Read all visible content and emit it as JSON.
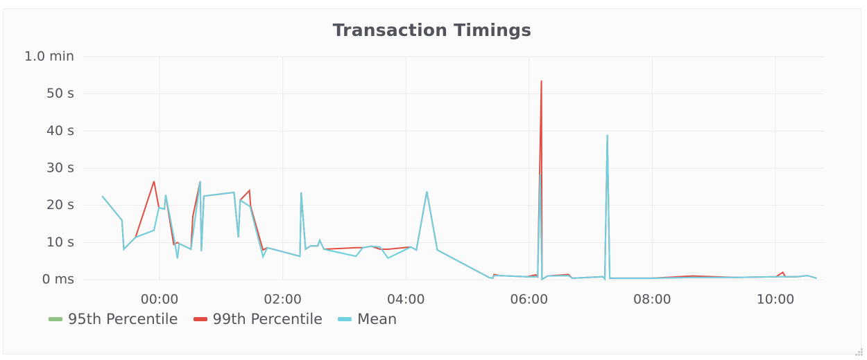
{
  "panel": {
    "title": "Transaction Timings"
  },
  "chart_data": {
    "type": "line",
    "title": "Transaction Timings",
    "xlabel": "",
    "ylabel": "",
    "x_unit": "hours relative to 00:00",
    "y_unit": "seconds",
    "xlim": [
      -1.24,
      10.8
    ],
    "ylim": [
      0,
      60
    ],
    "grid": true,
    "legend_position": "bottom-left",
    "y_ticks": [
      {
        "value": 0,
        "label": "0 ms"
      },
      {
        "value": 10,
        "label": "10 s"
      },
      {
        "value": 20,
        "label": "20 s"
      },
      {
        "value": 30,
        "label": "30 s"
      },
      {
        "value": 40,
        "label": "40 s"
      },
      {
        "value": 50,
        "label": "50 s"
      },
      {
        "value": 60,
        "label": "1.0 min"
      }
    ],
    "x_ticks": [
      {
        "value": 0,
        "label": "00:00"
      },
      {
        "value": 2,
        "label": "02:00"
      },
      {
        "value": 4,
        "label": "04:00"
      },
      {
        "value": 6,
        "label": "06:00"
      },
      {
        "value": 8,
        "label": "08:00"
      },
      {
        "value": 10,
        "label": "10:00"
      }
    ],
    "series": [
      {
        "name": "95th Percentile",
        "color": "#8fc086",
        "x": [
          -0.93,
          -0.61,
          -0.58,
          -0.39,
          -0.09,
          -0.01,
          0.08,
          0.1,
          0.25,
          0.29,
          0.32,
          0.51,
          0.66,
          0.68,
          0.72,
          1.21,
          1.28,
          1.31,
          1.47,
          1.68,
          1.75,
          2.28,
          2.3,
          2.37,
          2.45,
          2.57,
          2.6,
          2.67,
          3.19,
          3.3,
          3.44,
          3.58,
          3.71,
          4.08,
          4.17,
          4.34,
          4.51,
          5.35,
          5.41,
          5.43,
          5.52,
          5.97,
          6.14,
          6.18,
          6.21,
          6.3,
          6.64,
          6.7,
          7.2,
          7.23,
          7.27,
          7.31,
          7.54,
          7.99,
          8.66,
          9.34,
          10.01,
          10.35,
          10.52,
          10.67
        ],
        "values": [
          22.5,
          16,
          8.2,
          11.4,
          13.3,
          19.4,
          19.0,
          22.8,
          9.9,
          5.7,
          9.7,
          8.2,
          26.5,
          7.7,
          22.5,
          23.5,
          11.4,
          21.4,
          19.7,
          6.2,
          8.6,
          6.3,
          23.5,
          8.2,
          9.1,
          9.1,
          10.6,
          8.2,
          6.3,
          8.6,
          9.0,
          8.8,
          5.8,
          8.8,
          8.0,
          23.7,
          8.0,
          0.6,
          0.4,
          1.1,
          1.1,
          0.8,
          0.8,
          28.3,
          0.1,
          1.0,
          1.1,
          0.4,
          0.8,
          0.2,
          39,
          0.4,
          0.4,
          0.4,
          0.6,
          0.6,
          0.8,
          0.8,
          1.1,
          0.4
        ]
      },
      {
        "name": "99th Percentile",
        "color": "#e24d42",
        "x": [
          -0.93,
          -0.61,
          -0.58,
          -0.39,
          -0.09,
          -0.01,
          0.08,
          0.1,
          0.23,
          0.29,
          0.32,
          0.51,
          0.54,
          0.66,
          0.68,
          0.72,
          1.21,
          1.28,
          1.31,
          1.46,
          1.48,
          1.68,
          1.75,
          2.28,
          2.3,
          2.37,
          2.45,
          2.57,
          2.6,
          2.67,
          3.19,
          3.3,
          3.44,
          3.58,
          3.71,
          4.08,
          4.17,
          4.34,
          4.51,
          5.35,
          5.41,
          5.43,
          5.52,
          5.97,
          6.11,
          6.14,
          6.2,
          6.21,
          6.3,
          6.64,
          6.7,
          7.2,
          7.23,
          7.27,
          7.31,
          7.54,
          7.99,
          8.66,
          9.34,
          10.01,
          10.12,
          10.16,
          10.35,
          10.52,
          10.67
        ],
        "values": [
          22.5,
          16,
          8.2,
          11.4,
          26.5,
          19.4,
          19.0,
          22.8,
          9.5,
          10.0,
          9.7,
          8.2,
          17.0,
          26.5,
          7.7,
          22.5,
          23.5,
          11.4,
          21.4,
          24.0,
          19.7,
          8.0,
          8.6,
          6.3,
          23.5,
          8.2,
          9.1,
          9.1,
          10.6,
          8.2,
          8.6,
          8.6,
          9.0,
          8.2,
          8.2,
          8.8,
          8.0,
          23.7,
          8.0,
          0.6,
          0.4,
          1.4,
          1.1,
          0.8,
          1.3,
          0.8,
          53.6,
          0.1,
          1.0,
          1.4,
          0.4,
          0.8,
          0.2,
          39,
          0.4,
          0.4,
          0.4,
          1.0,
          0.6,
          0.8,
          2.0,
          0.8,
          0.8,
          1.1,
          0.4
        ]
      },
      {
        "name": "Mean",
        "color": "#6ed0e0",
        "x": [
          -0.93,
          -0.61,
          -0.58,
          -0.39,
          -0.09,
          -0.01,
          0.08,
          0.1,
          0.25,
          0.29,
          0.32,
          0.51,
          0.66,
          0.68,
          0.72,
          1.21,
          1.28,
          1.31,
          1.47,
          1.68,
          1.75,
          2.28,
          2.3,
          2.37,
          2.45,
          2.57,
          2.6,
          2.67,
          3.19,
          3.3,
          3.44,
          3.58,
          3.71,
          4.08,
          4.17,
          4.34,
          4.51,
          5.35,
          5.41,
          5.43,
          5.52,
          5.97,
          6.14,
          6.18,
          6.21,
          6.3,
          6.64,
          6.7,
          7.2,
          7.23,
          7.27,
          7.31,
          7.54,
          7.99,
          8.66,
          9.34,
          10.01,
          10.35,
          10.52,
          10.67
        ],
        "values": [
          22.5,
          16,
          8.2,
          11.4,
          13.3,
          19.4,
          19.0,
          22.8,
          9.9,
          5.7,
          9.7,
          8.2,
          26.5,
          7.7,
          22.5,
          23.5,
          11.4,
          21.4,
          19.7,
          6.2,
          8.6,
          6.3,
          23.5,
          8.2,
          9.1,
          9.1,
          10.6,
          8.2,
          6.3,
          8.6,
          9.0,
          8.8,
          5.8,
          8.8,
          8.0,
          23.7,
          8.0,
          0.6,
          0.4,
          1.1,
          1.1,
          0.8,
          0.8,
          28.3,
          0.1,
          1.0,
          1.1,
          0.4,
          0.8,
          0.2,
          39,
          0.4,
          0.4,
          0.4,
          0.6,
          0.6,
          0.8,
          0.8,
          1.1,
          0.4
        ]
      }
    ]
  },
  "legend": {
    "items": [
      {
        "label": "95th Percentile",
        "color": "#8fc086"
      },
      {
        "label": "99th Percentile",
        "color": "#e24d42"
      },
      {
        "label": "Mean",
        "color": "#6ed0e0"
      }
    ]
  },
  "colors": {
    "grid": "#ececec",
    "text": "#52545c",
    "panel_bg": "#fbfbfb"
  }
}
